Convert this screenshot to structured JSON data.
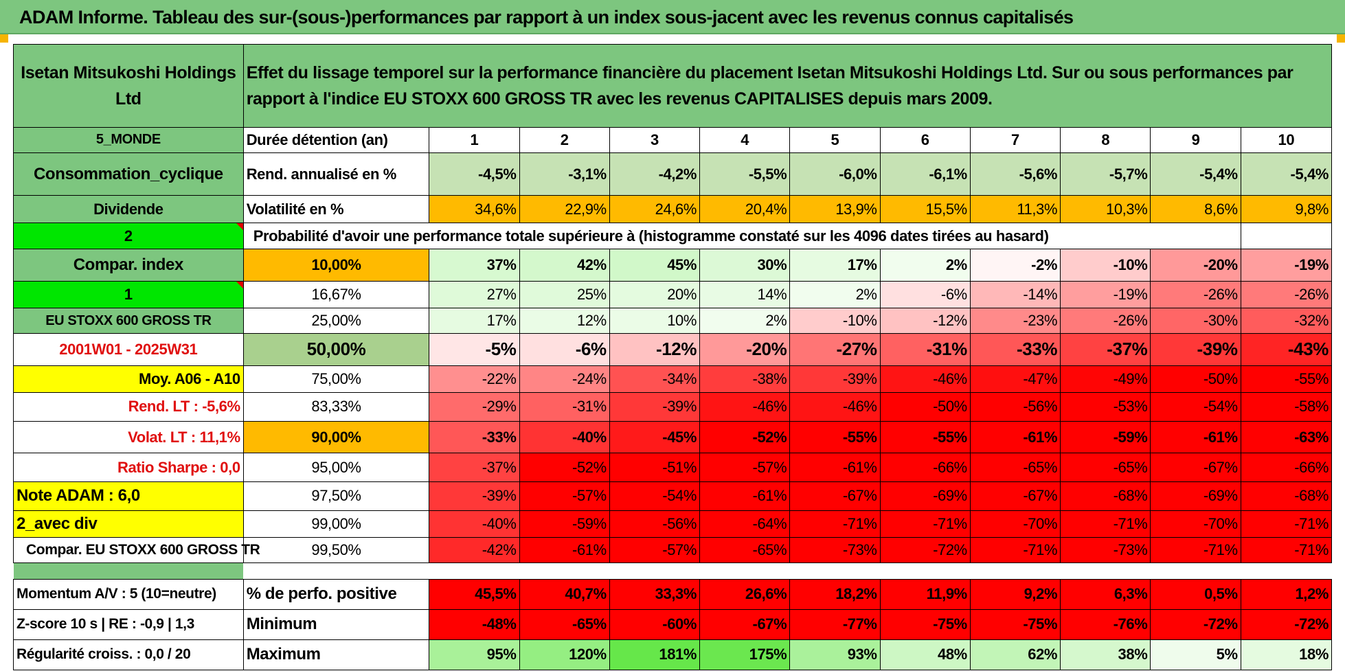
{
  "title": "ADAM Informe. Tableau des sur-(sous-)performances par rapport à un index sous-jacent avec les revenus connus capitalisés",
  "header": {
    "company": "Isetan Mitsukoshi Holdings Ltd",
    "description": "Effet du lissage temporel sur la performance financière du placement Isetan Mitsukoshi Holdings Ltd. Sur ou sous performances par rapport à l'indice EU STOXX 600 GROSS TR avec les revenus CAPITALISES depuis mars 2009."
  },
  "left": {
    "region": "5_MONDE",
    "sector": "Consommation_cyclique",
    "dividende": "Dividende",
    "num2": "2",
    "compar_index": "Compar. index",
    "num1": "1",
    "index_name": "EU STOXX 600 GROSS TR",
    "period": "2001W01 - 2025W31",
    "moy": "Moy. A06 - A10",
    "rend_lt": "Rend. LT :    -5,6%",
    "volat_lt": "Volat. LT :    11,1%",
    "sharpe": "Ratio Sharpe :     0,0",
    "note": "Note ADAM : 6,0",
    "avec_div": "2_avec div",
    "compar": "Compar. EU STOXX 600 GROSS TR",
    "momentum": "Momentum A/V : 5 (10=neutre)",
    "zscore": "Z-score 10 s | RE : -0,9 | 1,3",
    "regularite": "Régularité croiss. : 0,0 / 20"
  },
  "labels": {
    "duree": "Durée détention (an)",
    "rend": "Rend. annualisé en %",
    "vol": "Volatilité en %",
    "proba": "Probabilité d'avoir une performance totale supérieure à (histogramme constaté sur les 4096 dates tirées au hasard)",
    "pos": "% de perfo. positive",
    "min": "Minimum",
    "max": "Maximum"
  },
  "years": [
    "1",
    "2",
    "3",
    "4",
    "5",
    "6",
    "7",
    "8",
    "9",
    "10"
  ],
  "rend": [
    "-4,5%",
    "-3,1%",
    "-4,2%",
    "-5,5%",
    "-6,0%",
    "-6,1%",
    "-5,6%",
    "-5,7%",
    "-5,4%",
    "-5,4%"
  ],
  "vol": [
    "34,6%",
    "22,9%",
    "24,6%",
    "20,4%",
    "13,9%",
    "15,5%",
    "11,3%",
    "10,3%",
    "8,6%",
    "9,8%"
  ],
  "percentiles": [
    {
      "p": "10,00%",
      "v": [
        "37%",
        "42%",
        "45%",
        "30%",
        "17%",
        "2%",
        "-2%",
        "-10%",
        "-20%",
        "-19%"
      ]
    },
    {
      "p": "16,67%",
      "v": [
        "27%",
        "25%",
        "20%",
        "14%",
        "2%",
        "-6%",
        "-14%",
        "-19%",
        "-26%",
        "-26%"
      ]
    },
    {
      "p": "25,00%",
      "v": [
        "17%",
        "12%",
        "10%",
        "2%",
        "-10%",
        "-12%",
        "-23%",
        "-26%",
        "-30%",
        "-32%"
      ]
    },
    {
      "p": "50,00%",
      "v": [
        "-5%",
        "-6%",
        "-12%",
        "-20%",
        "-27%",
        "-31%",
        "-33%",
        "-37%",
        "-39%",
        "-43%"
      ]
    },
    {
      "p": "75,00%",
      "v": [
        "-22%",
        "-24%",
        "-34%",
        "-38%",
        "-39%",
        "-46%",
        "-47%",
        "-49%",
        "-50%",
        "-55%"
      ]
    },
    {
      "p": "83,33%",
      "v": [
        "-29%",
        "-31%",
        "-39%",
        "-46%",
        "-46%",
        "-50%",
        "-56%",
        "-53%",
        "-54%",
        "-58%"
      ]
    },
    {
      "p": "90,00%",
      "v": [
        "-33%",
        "-40%",
        "-45%",
        "-52%",
        "-55%",
        "-55%",
        "-61%",
        "-59%",
        "-61%",
        "-63%"
      ]
    },
    {
      "p": "95,00%",
      "v": [
        "-37%",
        "-52%",
        "-51%",
        "-57%",
        "-61%",
        "-66%",
        "-65%",
        "-65%",
        "-67%",
        "-66%"
      ]
    },
    {
      "p": "97,50%",
      "v": [
        "-39%",
        "-57%",
        "-54%",
        "-61%",
        "-67%",
        "-69%",
        "-67%",
        "-68%",
        "-69%",
        "-68%"
      ]
    },
    {
      "p": "99,00%",
      "v": [
        "-40%",
        "-59%",
        "-56%",
        "-64%",
        "-71%",
        "-71%",
        "-70%",
        "-71%",
        "-70%",
        "-71%"
      ]
    },
    {
      "p": "99,50%",
      "v": [
        "-42%",
        "-61%",
        "-57%",
        "-65%",
        "-73%",
        "-72%",
        "-71%",
        "-73%",
        "-71%",
        "-71%"
      ]
    }
  ],
  "positive": [
    "45,5%",
    "40,7%",
    "33,3%",
    "26,6%",
    "18,2%",
    "11,9%",
    "9,2%",
    "6,3%",
    "0,5%",
    "1,2%"
  ],
  "minimum": [
    "-48%",
    "-65%",
    "-60%",
    "-67%",
    "-77%",
    "-75%",
    "-75%",
    "-76%",
    "-72%",
    "-72%"
  ],
  "maximum": [
    "95%",
    "120%",
    "181%",
    "175%",
    "93%",
    "48%",
    "62%",
    "38%",
    "5%",
    "18%"
  ],
  "colors": {
    "header_green": "#7dc67f",
    "bright_green": "#00e600",
    "yellow": "#ffff00",
    "orange": "#ffba00",
    "red": "#ff0000",
    "red_text": "#e01010"
  }
}
